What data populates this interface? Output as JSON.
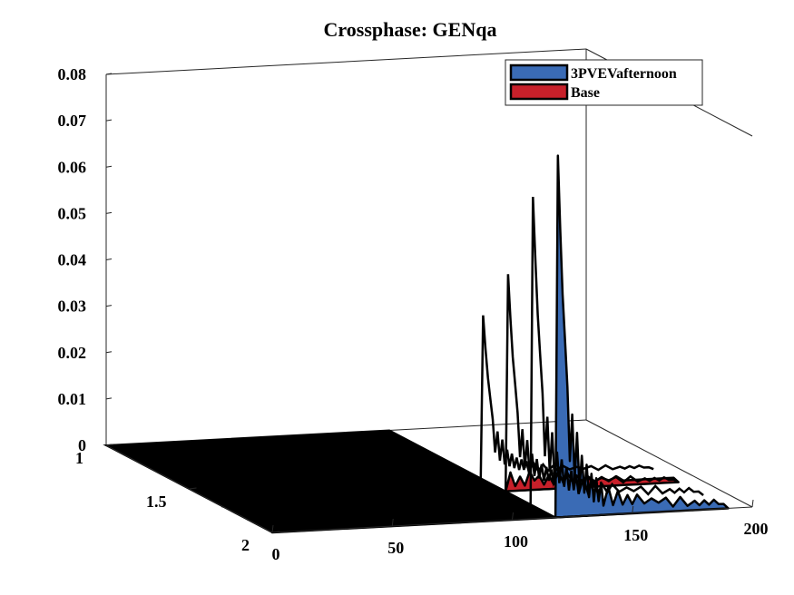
{
  "chart_data": {
    "type": "area",
    "view": "3d-waterfall",
    "title": "Crossphase: GENqa",
    "xlabel": "",
    "ylabel": "",
    "zlabel": "",
    "x_ticks": [
      "0",
      "50",
      "100",
      "150",
      "200"
    ],
    "y_ticks": [
      "1",
      "1.5",
      "2"
    ],
    "z_ticks": [
      "0",
      "0.01",
      "0.02",
      "0.03",
      "0.04",
      "0.05",
      "0.06",
      "0.07",
      "0.08"
    ],
    "xlim": [
      0,
      200
    ],
    "ylim": [
      1,
      2
    ],
    "zlim": [
      0,
      0.08
    ],
    "legend_position": "top-right",
    "colors": {
      "blue": "#3a6bb5",
      "red": "#c8202a",
      "floor": "#000000",
      "edge": "#000000"
    },
    "series": [
      {
        "name": "3PVEVafternoon",
        "y": 2,
        "x": [
          0,
          118,
          119,
          120,
          121,
          122,
          123,
          124,
          125,
          126,
          127,
          128,
          129,
          130,
          131,
          132,
          133,
          134,
          135,
          136,
          137,
          138,
          140,
          142,
          144,
          146,
          148,
          150,
          152,
          155,
          158,
          161,
          164,
          167,
          170,
          173,
          176,
          178,
          180,
          182,
          184,
          186,
          188,
          190
        ],
        "values": [
          0,
          0,
          0.078,
          0.062,
          0.048,
          0.038,
          0.028,
          0.012,
          0.022,
          0.008,
          0.018,
          0.006,
          0.013,
          0.005,
          0.011,
          0.004,
          0.009,
          0.003,
          0.008,
          0.003,
          0.007,
          0.002,
          0.006,
          0.002,
          0.005,
          0.002,
          0.004,
          0.002,
          0.004,
          0.002,
          0.003,
          0.002,
          0.003,
          0.001,
          0.003,
          0.001,
          0.002,
          0.001,
          0.002,
          0.001,
          0.002,
          0.001,
          0.001,
          0
        ]
      },
      {
        "name": "Base",
        "y": 1.7,
        "x": [
          0,
          118,
          119,
          120,
          122,
          124,
          126,
          128,
          130,
          132,
          134,
          136,
          138,
          140,
          143,
          146,
          149,
          152,
          155,
          158,
          161,
          164,
          167,
          170,
          173,
          176,
          180,
          184,
          188,
          190
        ],
        "values": [
          0,
          0,
          0.002,
          0.004,
          0.001,
          0.003,
          0.001,
          0.004,
          0.002,
          0.003,
          0.001,
          0.003,
          0.001,
          0.002,
          0.001,
          0.002,
          0.001,
          0.002,
          0.001,
          0.002,
          0.001,
          0.002,
          0.001,
          0.001,
          0.001,
          0.001,
          0.001,
          0.001,
          0.001,
          0
        ]
      }
    ]
  }
}
